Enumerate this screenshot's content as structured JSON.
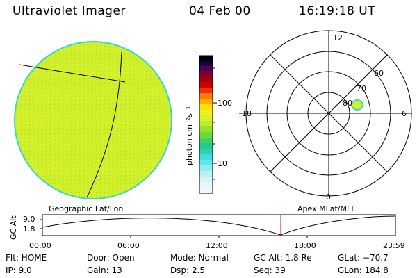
{
  "header": {
    "title": "Ultraviolet Imager",
    "date": "04 Feb 00",
    "time": "16:19:18 UT"
  },
  "colorbar": {
    "axis_label": "photon cm⁻²s⁻¹",
    "ticks": [
      "100",
      "10"
    ]
  },
  "polar_plot": {
    "mlt_labels": {
      "top": "12",
      "left": "18",
      "right": "6",
      "bottom": "0"
    },
    "lat_labels": [
      "60",
      "70",
      "80"
    ]
  },
  "timeline": {
    "left_label": "Geographic Lat/Lon",
    "right_label": "Apex MLat/MLT",
    "axis_title": "GC Alt",
    "y_ticks": [
      "9.0",
      "1.8"
    ],
    "x_ticks": [
      "00:00",
      "06:00",
      "12:00",
      "18:00",
      "23:59"
    ],
    "marker_time": "16:19"
  },
  "info": {
    "row1": {
      "flt": "Flt: HOME",
      "door": "Door: Open",
      "mode": "Mode: Normal",
      "gcalt": "GC Alt: 1.8 Re",
      "glat": "GLat: −70.7"
    },
    "row2": {
      "ip": "IP:  9.0",
      "gain": "Gain: 13",
      "dsp": "Dsp:    2.5",
      "seq": "Seq: 39",
      "glon": "GLon: 184.8"
    }
  },
  "colors": {
    "disk": "#d2f02a",
    "disk_rim": "#3ad6c8",
    "marker": "#e00000"
  }
}
